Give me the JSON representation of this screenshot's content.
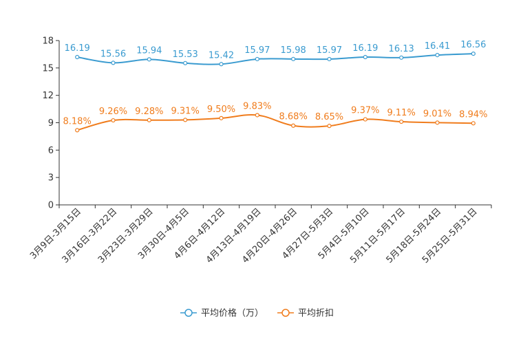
{
  "chart_data": {
    "type": "line",
    "categories": [
      "3月9日-3月15日",
      "3月16日-3月22日",
      "3月23日-3月29日",
      "3月30日-4月5日",
      "4月6日-4月12日",
      "4月13日-4月19日",
      "4月20日-4月26日",
      "4月27日-5月3日",
      "5月4日-5月10日",
      "5月11日-5月17日",
      "5月18日-5月24日",
      "5月25日-5月31日"
    ],
    "ylim": [
      0,
      18
    ],
    "yticks": [
      0,
      3,
      6,
      9,
      12,
      15,
      18
    ],
    "series": [
      {
        "name": "平均价格（万）",
        "color": "#3a9bd0",
        "values": [
          16.19,
          15.56,
          15.94,
          15.53,
          15.42,
          15.97,
          15.98,
          15.97,
          16.19,
          16.13,
          16.41,
          16.56
        ],
        "labels": [
          "16.19",
          "15.56",
          "15.94",
          "15.53",
          "15.42",
          "15.97",
          "15.98",
          "15.97",
          "16.19",
          "16.13",
          "16.41",
          "16.56"
        ]
      },
      {
        "name": "平均折扣",
        "color": "#f07c1c",
        "values": [
          8.18,
          9.26,
          9.28,
          9.31,
          9.5,
          9.83,
          8.68,
          8.65,
          9.37,
          9.11,
          9.01,
          8.94
        ],
        "labels": [
          "8.18%",
          "9.26%",
          "9.28%",
          "9.31%",
          "9.50%",
          "9.83%",
          "8.68%",
          "8.65%",
          "9.37%",
          "9.11%",
          "9.01%",
          "8.94%"
        ]
      }
    ],
    "title": "",
    "xlabel": "",
    "ylabel": "",
    "legend_position": "bottom-center"
  }
}
